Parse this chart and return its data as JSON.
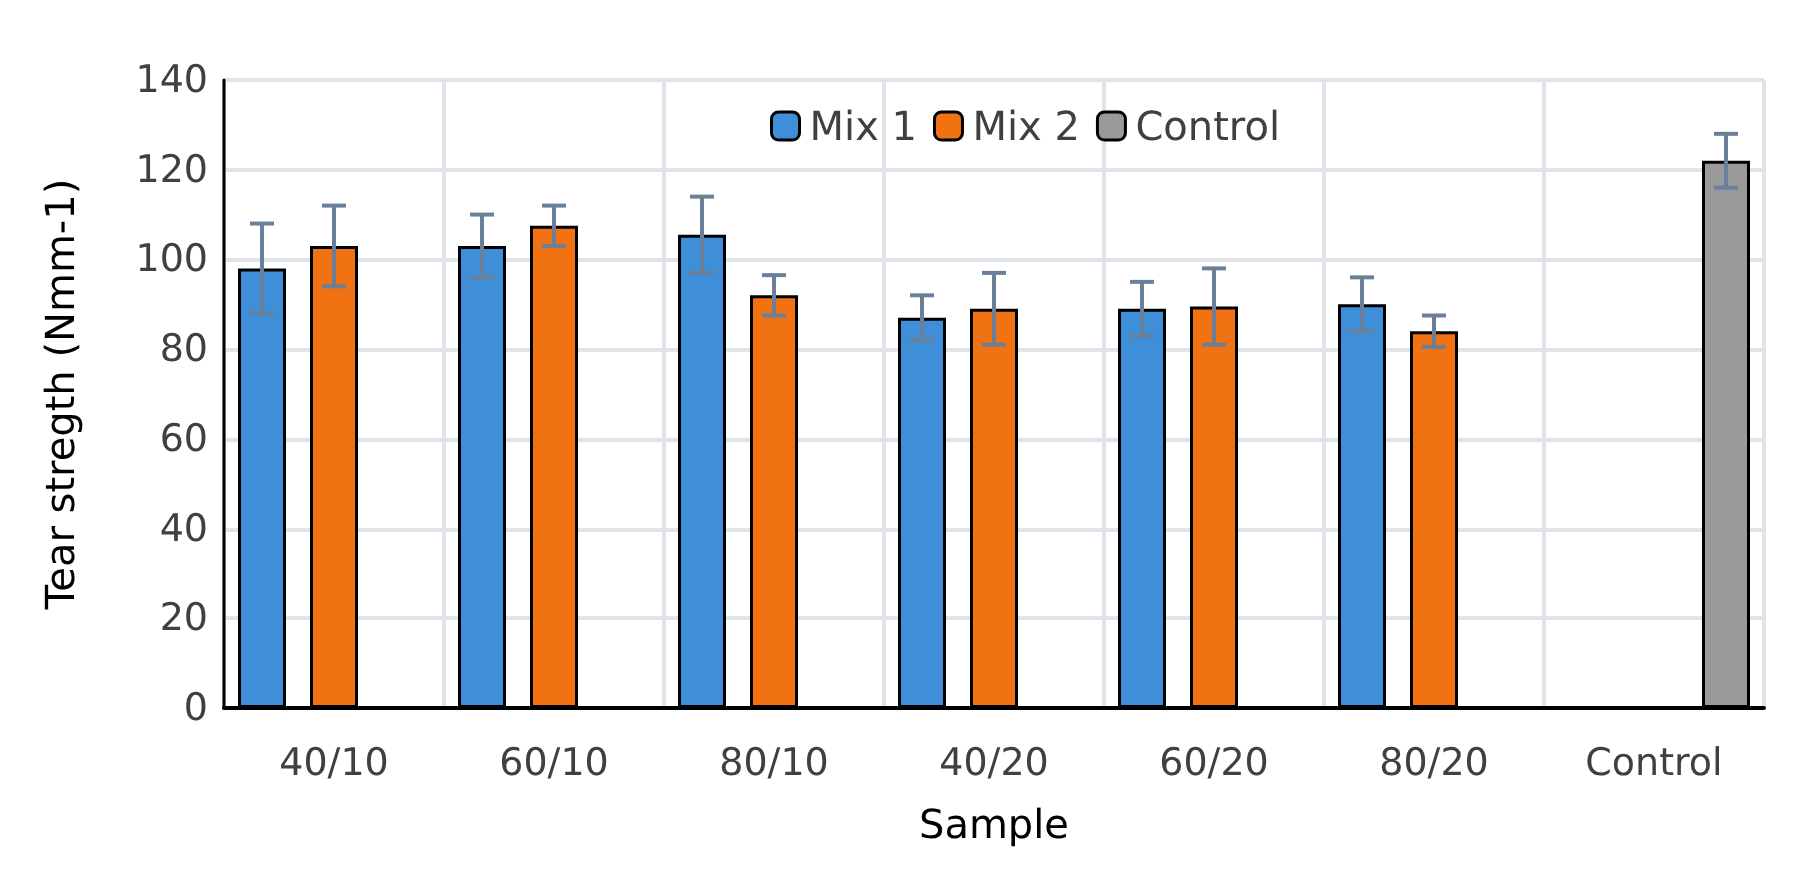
{
  "chart_data": {
    "type": "bar",
    "xlabel": "Sample",
    "ylabel": "Tear stregth (Nmm-1)",
    "categories": [
      "40/10",
      "60/10",
      "80/10",
      "40/20",
      "60/20",
      "80/20",
      "Control"
    ],
    "series": [
      {
        "name": "Mix 1",
        "color": "#3f8fd8",
        "values": [
          98,
          103,
          105.5,
          87,
          89,
          90,
          null
        ],
        "errors": [
          10,
          7,
          8.5,
          5,
          6,
          6,
          null
        ]
      },
      {
        "name": "Mix 2",
        "color": "#f07213",
        "values": [
          103,
          107.5,
          92,
          89,
          89.5,
          84,
          null
        ],
        "errors": [
          9,
          4.5,
          4.5,
          8,
          8.5,
          3.5,
          null
        ]
      },
      {
        "name": "Control",
        "color": "#9a9a9a",
        "values": [
          null,
          null,
          null,
          null,
          null,
          null,
          122
        ],
        "errors": [
          null,
          null,
          null,
          null,
          null,
          null,
          6
        ]
      }
    ],
    "ylim": [
      0,
      140
    ],
    "yticks": [
      0,
      20,
      40,
      60,
      80,
      100,
      120,
      140
    ],
    "grid": true,
    "legend": "top"
  }
}
